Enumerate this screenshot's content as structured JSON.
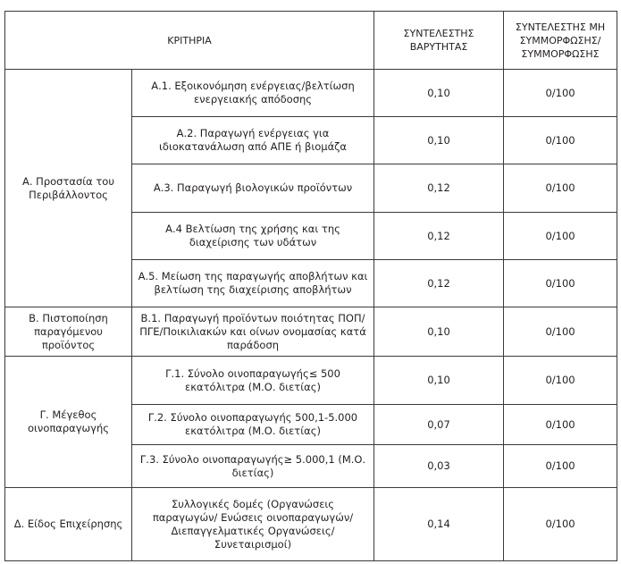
{
  "header": {
    "criteria": "ΚΡΙΤΗΡΙΑ",
    "weight": "ΣΥΝΤΕΛΕΣΤΗΣ ΒΑΡΥΤΗΤΑΣ",
    "compliance": "ΣΥΝΤΕΛΕΣΤΗΣ ΜΗ ΣΥΜΜΟΡΦΩΣΗΣ/ ΣΥΜΜΟΡΦΩΣΗΣ"
  },
  "groups": [
    {
      "label": "Α. Προστασία του Περιβάλλοντος",
      "rows": [
        {
          "criterion": "Α.1. Εξοικονόμηση ενέργειας/βελτίωση ενεργειακής απόδοσης",
          "weight": "0,10",
          "compliance": "0/100"
        },
        {
          "criterion": "Α.2. Παραγωγή ενέργειας για ιδιοκατανάλωση από ΑΠΕ ή βιομάζα",
          "weight": "0,10",
          "compliance": "0/100"
        },
        {
          "criterion": "Α.3. Παραγωγή βιολογικών προϊόντων",
          "weight": "0,12",
          "compliance": "0/100"
        },
        {
          "criterion": "Α.4 Βελτίωση της χρήσης και της διαχείρισης των υδάτων",
          "weight": "0,12",
          "compliance": "0/100"
        },
        {
          "criterion": "Α.5. Μείωση της παραγωγής αποβλήτων και βελτίωση της διαχείρισης αποβλήτων",
          "weight": "0,12",
          "compliance": "0/100"
        }
      ]
    },
    {
      "label": "Β. Πιστοποίηση παραγόμενου προϊόντος",
      "rows": [
        {
          "criterion": "Β.1. Παραγωγή προϊόντων ποιότητας ΠΟΠ/ ΠΓΕ/Ποικιλιακών και οίνων ονομασίας κατά παράδοση",
          "weight": "0,10",
          "compliance": "0/100"
        }
      ]
    },
    {
      "label": "Γ. Μέγεθος οινοπαραγωγής",
      "rows": [
        {
          "criterion": "Γ.1. Σύνολο οινοπαραγωγής≤ 500 εκατόλιτρα (Μ.Ο. διετίας)",
          "weight": "0,10",
          "compliance": "0/100"
        },
        {
          "criterion": "Γ.2. Σύνολο οινοπαραγωγής 500,1-5.000 εκατόλιτρα (Μ.Ο. διετίας)",
          "weight": "0,07",
          "compliance": "0/100"
        },
        {
          "criterion": "Γ.3. Σύνολο οινοπαραγωγής≥ 5.000,1 (Μ.Ο. διετίας)",
          "weight": "0,03",
          "compliance": "0/100"
        }
      ]
    },
    {
      "label": "Δ. Είδος Επιχείρησης",
      "rows": [
        {
          "criterion": "Συλλογικές δομές (Οργανώσεις παραγωγών/ Ενώσεις οινοπαραγωγών/ Διεπαγγελματικές Οργανώσεις/ Συνεταιρισμοί)",
          "weight": "0,14",
          "compliance": "0/100"
        }
      ]
    }
  ]
}
